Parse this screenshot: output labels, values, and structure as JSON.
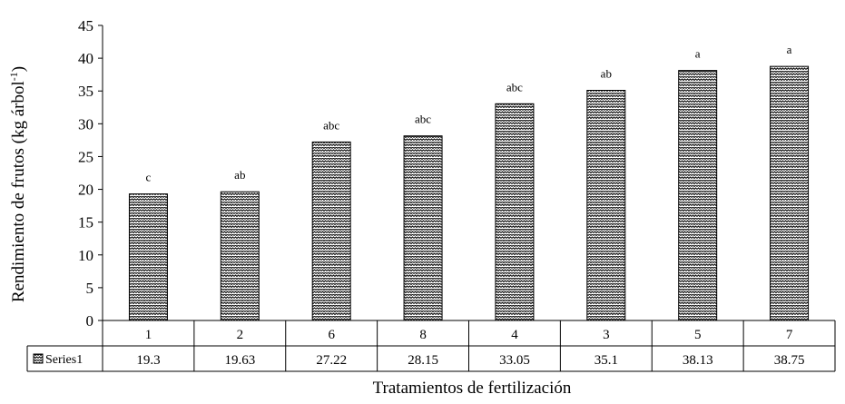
{
  "chart_data": {
    "type": "bar",
    "title": "",
    "xlabel": "Tratamientos de fertilización",
    "ylabel": "Rendimiento de frutos (kg árbol",
    "ylabel_superscript": "-1",
    "ylabel_suffix": ")",
    "ylim": [
      0,
      45
    ],
    "ytick_step": 5,
    "yticks": [
      "0",
      "5",
      "10",
      "15",
      "20",
      "25",
      "30",
      "35",
      "40",
      "45"
    ],
    "categories": [
      "1",
      "2",
      "6",
      "8",
      "4",
      "3",
      "5",
      "7"
    ],
    "series": [
      {
        "name": "Series1",
        "values": [
          19.3,
          19.63,
          27.22,
          28.15,
          33.05,
          35.1,
          38.13,
          38.75
        ],
        "value_labels": [
          "19.3",
          "19.63",
          "27.22",
          "28.15",
          "33.05",
          "35.1",
          "38.13",
          "38.75"
        ],
        "significance": [
          "c",
          "ab",
          "abc",
          "abc",
          "abc",
          "ab",
          "a",
          "a"
        ]
      }
    ],
    "fill": "crosshatch-pattern",
    "grid": false,
    "legend": "data-table"
  }
}
